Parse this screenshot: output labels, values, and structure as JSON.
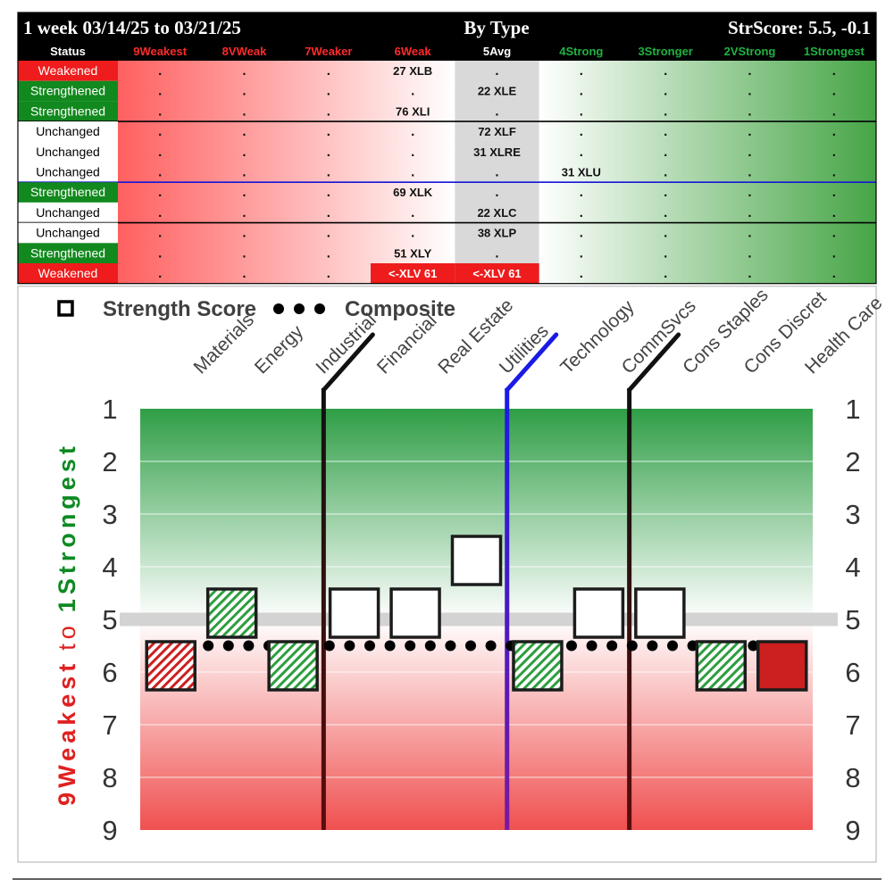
{
  "header": {
    "period": "1 week 03/14/25 to 03/21/25",
    "group": "By Type",
    "str_score": "StrScore: 5.5, -0.1"
  },
  "table": {
    "status_header": "Status",
    "columns": [
      {
        "label": "9Weakest",
        "color": "#ff2a2a"
      },
      {
        "label": "8VWeak",
        "color": "#ff2a2a"
      },
      {
        "label": "7Weaker",
        "color": "#ff2a2a"
      },
      {
        "label": "6Weak",
        "color": "#ff2a2a"
      },
      {
        "label": "5Avg",
        "color": "#ffffff"
      },
      {
        "label": "4Strong",
        "color": "#1fb341"
      },
      {
        "label": "3Stronger",
        "color": "#1fb341"
      },
      {
        "label": "2VStrong",
        "color": "#1fb341"
      },
      {
        "label": "1Strongest",
        "color": "#1fb341"
      }
    ],
    "rows": [
      {
        "status": "Weakened",
        "kind": "weakened",
        "cells": [
          ".",
          ".",
          ".",
          "27 XLB",
          ".",
          ".",
          ".",
          ".",
          "."
        ],
        "sep": ""
      },
      {
        "status": "Strengthened",
        "kind": "strengthened",
        "cells": [
          ".",
          ".",
          ".",
          ".",
          "22 XLE",
          ".",
          ".",
          ".",
          "."
        ],
        "sep": ""
      },
      {
        "status": "Strengthened",
        "kind": "strengthened",
        "cells": [
          ".",
          ".",
          ".",
          "76 XLI",
          ".",
          ".",
          ".",
          ".",
          "."
        ],
        "sep": "black"
      },
      {
        "status": "Unchanged",
        "kind": "unchanged",
        "cells": [
          ".",
          ".",
          ".",
          ".",
          "72 XLF",
          ".",
          ".",
          ".",
          "."
        ],
        "sep": ""
      },
      {
        "status": "Unchanged",
        "kind": "unchanged",
        "cells": [
          ".",
          ".",
          ".",
          ".",
          "31 XLRE",
          ".",
          ".",
          ".",
          "."
        ],
        "sep": ""
      },
      {
        "status": "Unchanged",
        "kind": "unchanged",
        "cells": [
          ".",
          ".",
          ".",
          ".",
          ".",
          "31 XLU",
          ".",
          ".",
          "."
        ],
        "sep": "blue"
      },
      {
        "status": "Strengthened",
        "kind": "strengthened",
        "cells": [
          ".",
          ".",
          ".",
          "69 XLK",
          ".",
          ".",
          ".",
          ".",
          "."
        ],
        "sep": ""
      },
      {
        "status": "Unchanged",
        "kind": "unchanged",
        "cells": [
          ".",
          ".",
          ".",
          ".",
          "22 XLC",
          ".",
          ".",
          ".",
          "."
        ],
        "sep": "black"
      },
      {
        "status": "Unchanged",
        "kind": "unchanged",
        "cells": [
          ".",
          ".",
          ".",
          ".",
          "38 XLP",
          ".",
          ".",
          ".",
          "."
        ],
        "sep": ""
      },
      {
        "status": "Strengthened",
        "kind": "strengthened",
        "cells": [
          ".",
          ".",
          ".",
          "51 XLY",
          ".",
          ".",
          ".",
          ".",
          "."
        ],
        "sep": ""
      },
      {
        "status": "Weakened",
        "kind": "weakened",
        "cells": [
          ".",
          ".",
          ".",
          "<-XLV 61",
          "<-XLV 61",
          ".",
          ".",
          ".",
          "."
        ],
        "hl": [
          3,
          4
        ],
        "sep": ""
      }
    ]
  },
  "colors": {
    "weakened_bg": "#ee1c1c",
    "strengthened_bg": "#12891e",
    "weak_fill": "#cc1f1f",
    "strong_hatch": "#2e9e3e",
    "sep_blue": "#1515d6",
    "strong_zone": "#2f9e46",
    "weak_zone": "#f05050"
  },
  "chart_data": {
    "type": "scatter",
    "legend": {
      "strength_label": "Strength Score",
      "composite_label": "Composite",
      "position": "top-left"
    },
    "ylabel_weak": "9Weakest",
    "ylabel_to": "to",
    "ylabel_strong": "1Strongest",
    "ylim": [
      1,
      9
    ],
    "yticks": [
      "1",
      "2",
      "3",
      "4",
      "5",
      "6",
      "7",
      "8",
      "9"
    ],
    "average_line": 5,
    "composite_value": 5.5,
    "categories": [
      "Materials",
      "Energy",
      "Industrial",
      "Financial",
      "Real Estate",
      "Utilities",
      "Technology",
      "CommSvcs",
      "Cons Staples",
      "Cons Discret",
      "Health Care"
    ],
    "strength_scores": [
      6,
      5,
      6,
      5,
      5,
      4,
      6,
      5,
      5,
      6,
      6
    ],
    "status": [
      "weakened",
      "strengthened",
      "strengthened",
      "unchanged",
      "unchanged",
      "unchanged",
      "strengthened",
      "unchanged",
      "unchanged",
      "strengthened",
      "weakened"
    ],
    "dividers": [
      {
        "after_index": 2,
        "color": "black"
      },
      {
        "after_index": 5,
        "color": "blue"
      },
      {
        "after_index": 7,
        "color": "black"
      }
    ]
  }
}
